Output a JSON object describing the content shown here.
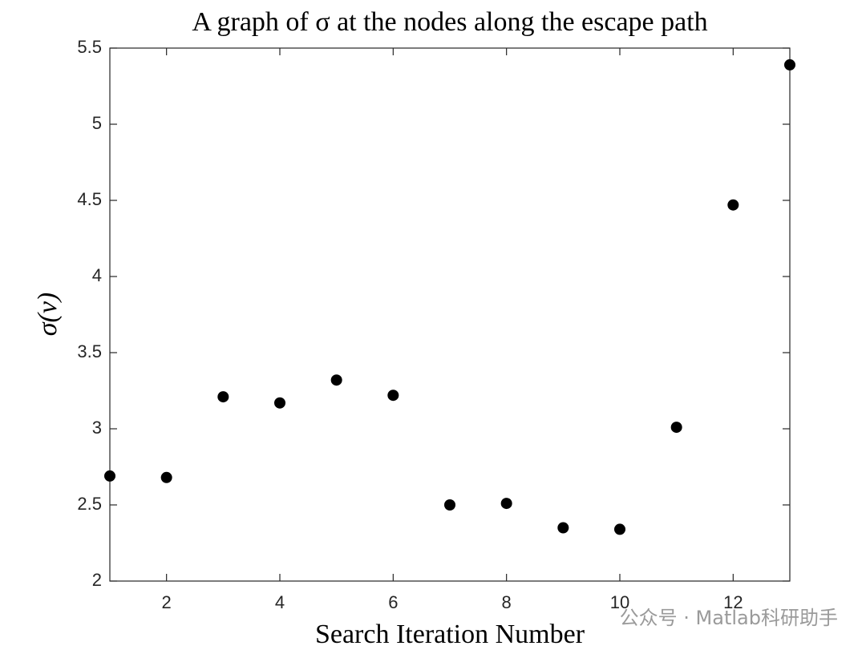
{
  "chart_data": {
    "type": "scatter",
    "title": "A graph of σ at the nodes along the escape path",
    "xlabel": "Search Iteration Number",
    "ylabel": "σ(v)",
    "x": [
      1,
      2,
      3,
      4,
      5,
      6,
      7,
      8,
      9,
      10,
      11,
      12,
      13
    ],
    "series": [
      {
        "color": "#000000",
        "values": [
          2.69,
          2.68,
          3.21,
          3.17,
          3.32,
          3.22,
          2.5,
          2.51,
          2.35,
          2.34,
          3.01,
          4.47,
          5.39
        ]
      }
    ],
    "xlim": [
      1,
      13
    ],
    "xticks": [
      2,
      4,
      6,
      8,
      10,
      12
    ],
    "ylim": [
      2,
      5.5
    ],
    "yticks": [
      2,
      2.5,
      3,
      3.5,
      4,
      4.5,
      5,
      5.5
    ],
    "grid": false,
    "watermark": "公众号 · Matlab科研助手"
  }
}
